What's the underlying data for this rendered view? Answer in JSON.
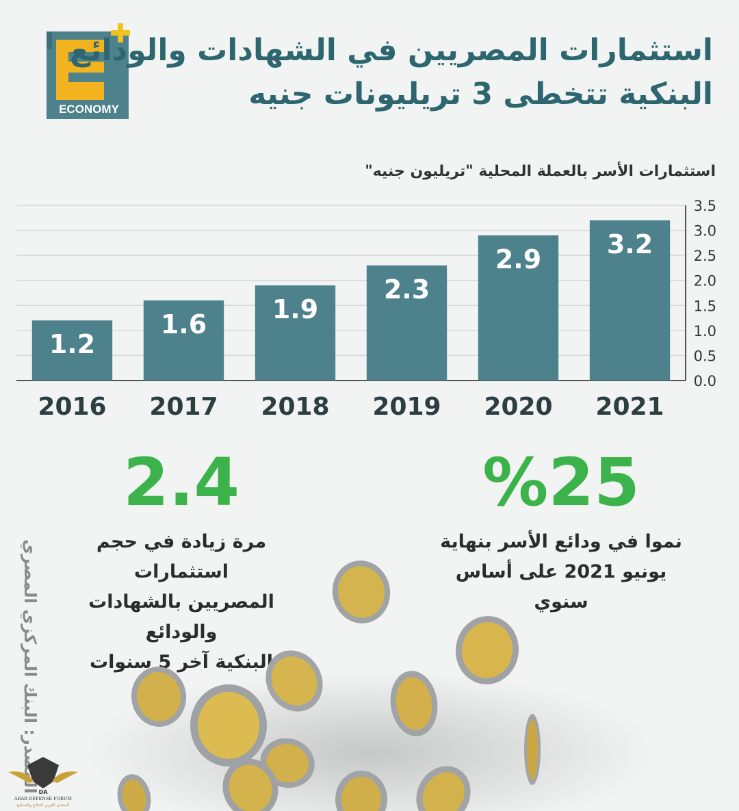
{
  "header": {
    "logo_text": "ECONOMY",
    "title_line1": "استثمارات المصريين في الشهادات والودائع",
    "title_line2": "البنكية تتخطى 3 تريليونات جنيه"
  },
  "chart_data": {
    "type": "bar",
    "title": "استثمارات الأسر بالعملة المحلية \"تريليون جنيه\"",
    "categories": [
      "2016",
      "2017",
      "2018",
      "2019",
      "2020",
      "2021"
    ],
    "values": [
      1.2,
      1.6,
      1.9,
      2.3,
      2.9,
      3.2
    ],
    "data_labels": [
      "1.2",
      "1.6",
      "1.9",
      "2.3",
      "2.9",
      "3.2"
    ],
    "ylim": [
      0,
      3.5
    ],
    "yticks": [
      "3.5",
      "3.0",
      "2.5",
      "2.0",
      "1.5",
      "1.0",
      "0.5",
      "0.0"
    ],
    "y_axis_position": "right",
    "grid": true,
    "bar_color": "#4d818b"
  },
  "stats": {
    "left_value": "2.4",
    "left_desc_line1": "مرة زيادة في حجم استثمارات",
    "left_desc_line2": "المصريين بالشهادات والودائع",
    "left_desc_line3": "البنكية آخر 5 سنوات",
    "right_value": "%25",
    "right_desc_line1": "نموا في ودائع الأسر بنهاية",
    "right_desc_line2": "يونيو 2021 على أساس",
    "right_desc_line3": "سنوي"
  },
  "source": "المصدر: البنك المركزي المصري",
  "forum": {
    "name": "ARAB DEFENSE FORUM",
    "abbr": "DA",
    "arabic": "المنتدى العربي للدفاع والتسليح"
  },
  "colors": {
    "title": "#2e6670",
    "accent_green": "#3cb34a",
    "logo_teal": "#4d818b",
    "logo_yellow": "#f2b31e",
    "logo_plus": "#f2c21e"
  }
}
